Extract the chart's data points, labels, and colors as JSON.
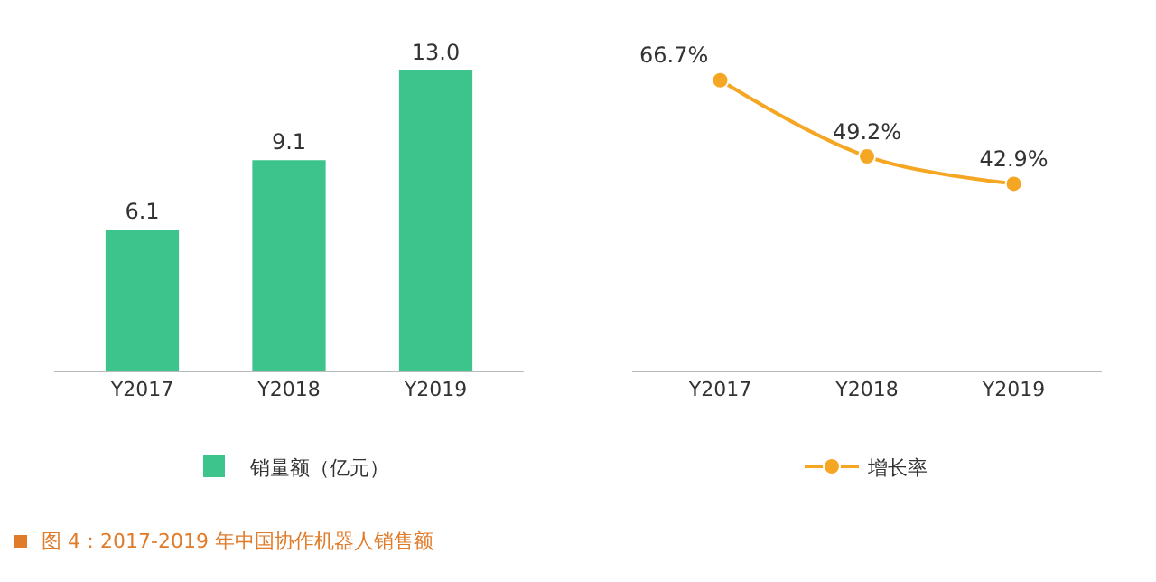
{
  "chart_data": [
    {
      "type": "bar",
      "categories": [
        "Y2017",
        "Y2018",
        "Y2019"
      ],
      "series": [
        {
          "name": "销量额（亿元）",
          "color": "#3cc48c",
          "values": [
            6.1,
            9.1,
            13.0
          ],
          "value_labels": [
            "6.1",
            "9.1",
            "13.0"
          ]
        }
      ],
      "legend": "bottom",
      "grid": false,
      "tick_labels": "x",
      "annotations": [
        "图 4：2017-2019 年中国协作机器人销售额"
      ]
    },
    {
      "type": "line",
      "categories": [
        "Y2017",
        "Y2018",
        "Y2019"
      ],
      "series": [
        {
          "name": "增长率",
          "color": "#f5a623",
          "values": [
            66.7,
            49.2,
            42.9
          ],
          "value_labels": [
            "66.7%",
            "49.2%",
            "42.9%"
          ]
        }
      ],
      "marker": "circle",
      "line_style": "solid",
      "legend": "bottom",
      "grid": false,
      "tick_labels": "x"
    }
  ]
}
